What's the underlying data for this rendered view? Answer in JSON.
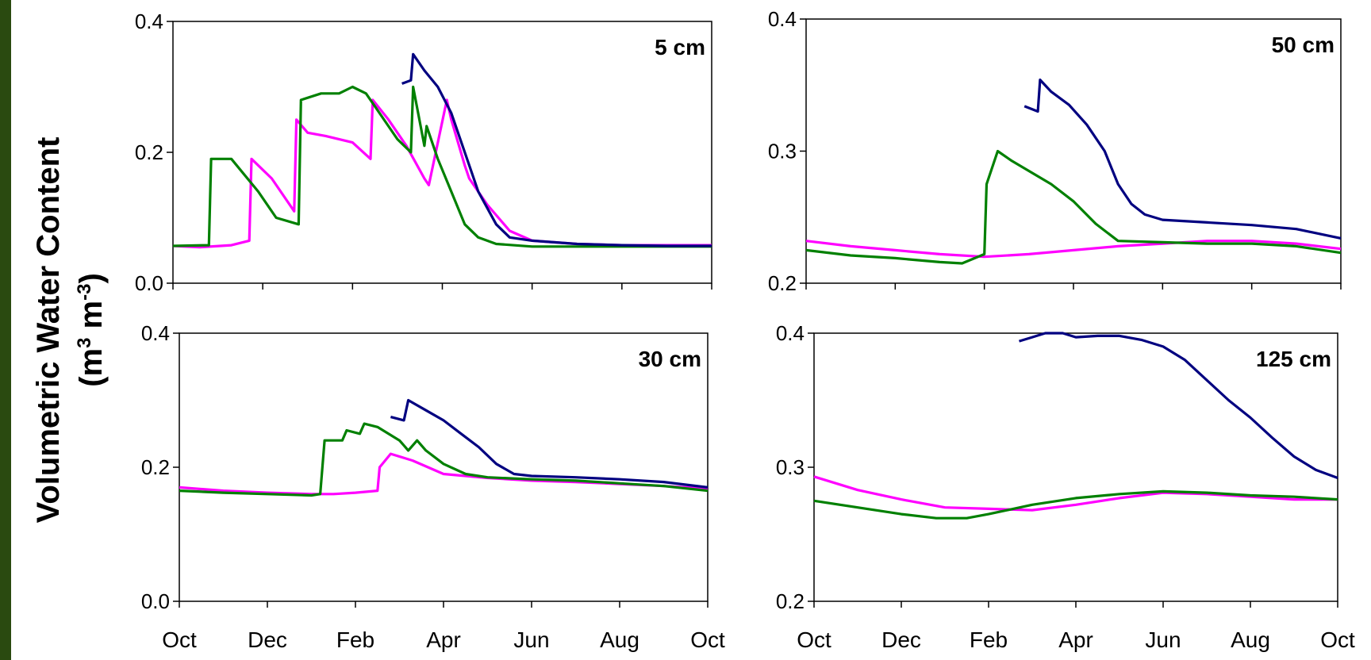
{
  "y_axis_title": {
    "line1": "Volumetric Water Content",
    "unit_open": "(m",
    "unit_mid": " m",
    "unit_close": ")",
    "exp1": "3",
    "exp2": "-3"
  },
  "colors": {
    "series_a": "#000080",
    "series_b": "#ff00ff",
    "series_c": "#008000",
    "frame": "#2a4a10"
  },
  "chart_data": [
    {
      "type": "line",
      "title": "5 cm",
      "xticks": [
        "Oct",
        "Dec",
        "Feb",
        "Apr",
        "Jun",
        "Aug",
        "Oct"
      ],
      "xtick_labels_shown": false,
      "ylim": [
        0,
        0.4
      ],
      "yticks": [
        0,
        0.2,
        0.4
      ],
      "ytick_labels": [
        "0.0",
        "0.2",
        "0.4"
      ],
      "grid": false,
      "series": [
        {
          "color": "#ff00ff",
          "x": [
            0,
            0.6,
            1.3,
            1.7,
            1.75,
            2.2,
            2.7,
            2.75,
            3.0,
            3.4,
            4.0,
            4.4,
            4.45,
            4.8,
            5.2,
            5.6,
            5.7,
            6.1,
            6.2,
            6.5,
            6.6,
            7.0,
            7.5,
            8.0,
            9.0,
            10.0,
            12.0
          ],
          "y": [
            0.057,
            0.055,
            0.058,
            0.065,
            0.19,
            0.16,
            0.11,
            0.25,
            0.23,
            0.225,
            0.215,
            0.19,
            0.28,
            0.25,
            0.21,
            0.16,
            0.15,
            0.28,
            0.25,
            0.18,
            0.16,
            0.12,
            0.08,
            0.065,
            0.06,
            0.058,
            0.058
          ]
        },
        {
          "color": "#008000",
          "x": [
            0,
            0.8,
            0.85,
            1.3,
            1.9,
            2.3,
            2.8,
            2.85,
            3.3,
            3.7,
            4.0,
            4.3,
            4.6,
            5.0,
            5.3,
            5.35,
            5.6,
            5.65,
            5.9,
            6.2,
            6.5,
            6.8,
            7.2,
            8.0,
            9.0,
            10.0,
            12.0
          ],
          "y": [
            0.057,
            0.058,
            0.19,
            0.19,
            0.14,
            0.1,
            0.09,
            0.28,
            0.29,
            0.29,
            0.3,
            0.29,
            0.26,
            0.22,
            0.2,
            0.3,
            0.21,
            0.24,
            0.19,
            0.14,
            0.09,
            0.07,
            0.06,
            0.056,
            0.056,
            0.056,
            0.056
          ]
        },
        {
          "color": "#000080",
          "x": [
            5.1,
            5.3,
            5.35,
            5.6,
            5.9,
            6.2,
            6.5,
            6.8,
            7.2,
            7.5,
            8.0,
            9.0,
            10.0,
            11.0,
            12.0
          ],
          "y": [
            0.305,
            0.31,
            0.35,
            0.325,
            0.3,
            0.26,
            0.2,
            0.14,
            0.09,
            0.07,
            0.065,
            0.06,
            0.058,
            0.057,
            0.057
          ]
        }
      ]
    },
    {
      "type": "line",
      "title": "50 cm",
      "xticks": [
        "Oct",
        "Dec",
        "Feb",
        "Apr",
        "Jun",
        "Aug",
        "Oct"
      ],
      "xtick_labels_shown": false,
      "ylim": [
        0.2,
        0.4
      ],
      "yticks": [
        0.2,
        0.3,
        0.4
      ],
      "ytick_labels": [
        "0.2",
        "0.3",
        "0.4"
      ],
      "grid": false,
      "series": [
        {
          "color": "#ff00ff",
          "x": [
            0,
            1.0,
            2.0,
            3.0,
            4.0,
            5.0,
            6.0,
            7.0,
            8.0,
            9.0,
            10.0,
            11.0,
            12.0
          ],
          "y": [
            0.232,
            0.228,
            0.225,
            0.222,
            0.22,
            0.222,
            0.225,
            0.228,
            0.23,
            0.232,
            0.232,
            0.23,
            0.226
          ]
        },
        {
          "color": "#008000",
          "x": [
            0,
            1.0,
            2.0,
            3.0,
            3.5,
            4.0,
            4.05,
            4.3,
            4.6,
            5.0,
            5.5,
            6.0,
            6.5,
            7.0,
            8.0,
            9.0,
            10.0,
            11.0,
            12.0
          ],
          "y": [
            0.225,
            0.221,
            0.219,
            0.216,
            0.215,
            0.222,
            0.275,
            0.3,
            0.293,
            0.285,
            0.275,
            0.262,
            0.245,
            0.232,
            0.231,
            0.23,
            0.23,
            0.228,
            0.223
          ]
        },
        {
          "color": "#000080",
          "x": [
            4.9,
            5.2,
            5.25,
            5.5,
            5.9,
            6.3,
            6.7,
            7.0,
            7.3,
            7.6,
            8.0,
            9.0,
            10.0,
            11.0,
            12.0
          ],
          "y": [
            0.334,
            0.33,
            0.354,
            0.345,
            0.335,
            0.32,
            0.3,
            0.275,
            0.26,
            0.252,
            0.248,
            0.246,
            0.244,
            0.241,
            0.234
          ]
        }
      ]
    },
    {
      "type": "line",
      "title": "30 cm",
      "xticks": [
        "Oct",
        "Dec",
        "Feb",
        "Apr",
        "Jun",
        "Aug",
        "Oct"
      ],
      "xtick_labels_shown": true,
      "ylim": [
        0,
        0.4
      ],
      "yticks": [
        0,
        0.2,
        0.4
      ],
      "ytick_labels": [
        "0.0",
        "0.2",
        "0.4"
      ],
      "grid": false,
      "series": [
        {
          "color": "#ff00ff",
          "x": [
            0,
            1.0,
            2.0,
            3.0,
            3.2,
            3.5,
            4.0,
            4.5,
            4.55,
            4.8,
            5.3,
            6.0,
            7.0,
            8.0,
            9.0,
            10.0,
            11.0,
            12.0
          ],
          "y": [
            0.17,
            0.165,
            0.162,
            0.16,
            0.16,
            0.16,
            0.162,
            0.165,
            0.2,
            0.22,
            0.21,
            0.19,
            0.184,
            0.18,
            0.178,
            0.175,
            0.172,
            0.168
          ]
        },
        {
          "color": "#008000",
          "x": [
            0,
            1.0,
            2.0,
            3.0,
            3.2,
            3.3,
            3.7,
            3.8,
            4.1,
            4.2,
            4.5,
            5.0,
            5.2,
            5.4,
            5.6,
            6.0,
            6.5,
            7.0,
            8.0,
            9.0,
            10.0,
            11.0,
            12.0
          ],
          "y": [
            0.165,
            0.162,
            0.16,
            0.158,
            0.16,
            0.24,
            0.24,
            0.255,
            0.25,
            0.265,
            0.26,
            0.24,
            0.225,
            0.24,
            0.225,
            0.205,
            0.19,
            0.185,
            0.182,
            0.18,
            0.176,
            0.172,
            0.165
          ]
        },
        {
          "color": "#000080",
          "x": [
            4.8,
            5.1,
            5.2,
            5.6,
            6.0,
            6.4,
            6.8,
            7.2,
            7.6,
            8.0,
            9.0,
            10.0,
            11.0,
            12.0
          ],
          "y": [
            0.275,
            0.27,
            0.3,
            0.285,
            0.27,
            0.25,
            0.23,
            0.205,
            0.19,
            0.187,
            0.185,
            0.182,
            0.178,
            0.17
          ]
        }
      ]
    },
    {
      "type": "line",
      "title": "125 cm",
      "xticks": [
        "Oct",
        "Dec",
        "Feb",
        "Apr",
        "Jun",
        "Aug",
        "Oct"
      ],
      "xtick_labels_shown": true,
      "ylim": [
        0.2,
        0.4
      ],
      "yticks": [
        0.2,
        0.3,
        0.4
      ],
      "ytick_labels": [
        "0.2",
        "0.3",
        "0.4"
      ],
      "grid": false,
      "series": [
        {
          "color": "#ff00ff",
          "x": [
            0,
            1.0,
            2.0,
            3.0,
            4.0,
            5.0,
            6.0,
            7.0,
            8.0,
            9.0,
            10.0,
            11.0,
            12.0
          ],
          "y": [
            0.293,
            0.283,
            0.276,
            0.27,
            0.269,
            0.268,
            0.272,
            0.277,
            0.281,
            0.28,
            0.278,
            0.276,
            0.276
          ]
        },
        {
          "color": "#008000",
          "x": [
            0,
            1.0,
            2.0,
            2.8,
            3.5,
            4.0,
            5.0,
            6.0,
            7.0,
            8.0,
            9.0,
            10.0,
            11.0,
            12.0
          ],
          "y": [
            0.275,
            0.27,
            0.265,
            0.262,
            0.262,
            0.265,
            0.272,
            0.277,
            0.28,
            0.282,
            0.281,
            0.279,
            0.278,
            0.276
          ]
        },
        {
          "color": "#000080",
          "x": [
            4.7,
            5.0,
            5.3,
            5.7,
            6.0,
            6.5,
            7.0,
            7.5,
            8.0,
            8.5,
            9.0,
            9.5,
            10.0,
            10.5,
            11.0,
            11.5,
            12.0
          ],
          "y": [
            0.394,
            0.397,
            0.4,
            0.4,
            0.397,
            0.398,
            0.398,
            0.395,
            0.39,
            0.38,
            0.365,
            0.35,
            0.337,
            0.322,
            0.308,
            0.298,
            0.292
          ]
        }
      ]
    }
  ]
}
